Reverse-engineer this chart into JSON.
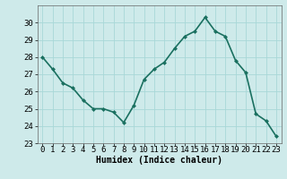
{
  "x": [
    0,
    1,
    2,
    3,
    4,
    5,
    6,
    7,
    8,
    9,
    10,
    11,
    12,
    13,
    14,
    15,
    16,
    17,
    18,
    19,
    20,
    21,
    22,
    23
  ],
  "y": [
    28.0,
    27.3,
    26.5,
    26.2,
    25.5,
    25.0,
    25.0,
    24.8,
    24.2,
    25.2,
    26.7,
    27.3,
    27.7,
    28.5,
    29.2,
    29.5,
    30.3,
    29.5,
    29.2,
    27.8,
    27.1,
    24.7,
    24.3,
    23.4
  ],
  "line_color": "#1a7060",
  "marker_color": "#1a7060",
  "bg_color": "#ceeaea",
  "grid_color": "#a8d8d8",
  "xlabel": "Humidex (Indice chaleur)",
  "ylim": [
    23,
    31
  ],
  "yticks": [
    23,
    24,
    25,
    26,
    27,
    28,
    29,
    30
  ],
  "xlim": [
    -0.5,
    23.5
  ],
  "xticks": [
    0,
    1,
    2,
    3,
    4,
    5,
    6,
    7,
    8,
    9,
    10,
    11,
    12,
    13,
    14,
    15,
    16,
    17,
    18,
    19,
    20,
    21,
    22,
    23
  ],
  "xlabel_fontsize": 7,
  "tick_fontsize": 6.5,
  "line_width": 1.2,
  "marker_size": 2.5
}
